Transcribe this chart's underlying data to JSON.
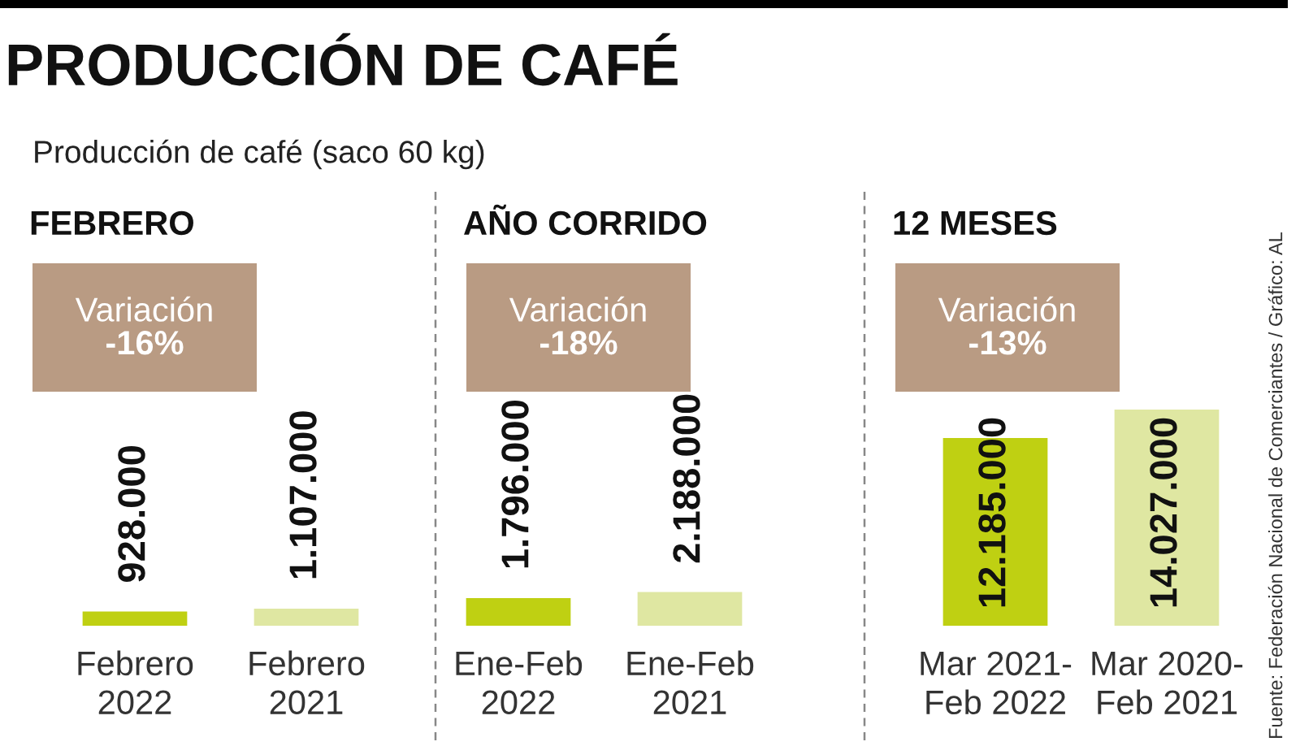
{
  "chart_data": [
    {
      "type": "other",
      "title": "PRODUCCIÓN DE CAFÉ",
      "subtitle": "Producción de café (saco 60 kg)",
      "annotations": [
        "Fuente: Federación Nacional de Comerciantes / Gráfico: AL"
      ]
    },
    {
      "type": "bar",
      "title": "FEBRERO",
      "annotations": [
        "Variación",
        "-16%"
      ],
      "categories": [
        "Febrero\n2022",
        "Febrero\n2021"
      ],
      "values": [
        928000,
        1107000
      ],
      "colors": [
        "#bfd012",
        "#dfe7a2"
      ],
      "value_labels": [
        "928.000",
        "1.107.000"
      ],
      "tick_labels": "x"
    },
    {
      "type": "bar",
      "title": "AÑO CORRIDO",
      "annotations": [
        "Variación",
        "-18%"
      ],
      "categories": [
        "Ene-Feb\n2022",
        "Ene-Feb\n2021"
      ],
      "values": [
        1796000,
        2188000
      ],
      "colors": [
        "#bfd012",
        "#dfe7a2"
      ],
      "value_labels": [
        "1.796.000",
        "2.188.000"
      ],
      "tick_labels": "x"
    },
    {
      "type": "bar",
      "title": "12 MESES",
      "annotations": [
        "Variación",
        "-13%"
      ],
      "categories": [
        "Mar 2021-\nFeb 2022",
        "Mar 2020-\nFeb 2021"
      ],
      "values": [
        12185000,
        14027000
      ],
      "colors": [
        "#bfd012",
        "#dfe7a2"
      ],
      "value_labels": [
        "12.185.000",
        "14.027.000"
      ],
      "tick_labels": "x"
    }
  ]
}
